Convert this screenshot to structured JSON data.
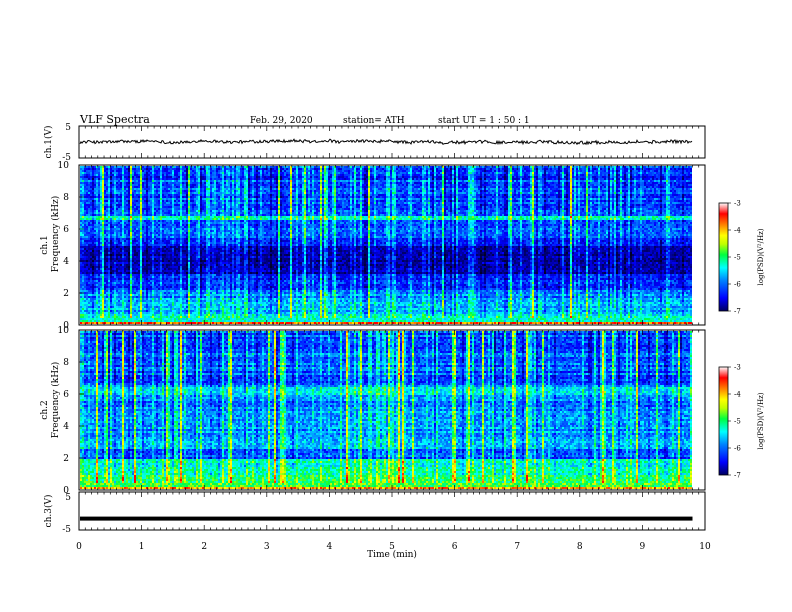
{
  "header": {
    "title": "VLF  Spectra",
    "date": "Feb. 29, 2020",
    "station": "station= ATH",
    "start_ut": "start  UT  =   1 : 50 : 1"
  },
  "colors": {
    "cmap": [
      "#000080",
      "#0000ff",
      "#0080ff",
      "#00ffff",
      "#00ff40",
      "#c0ff00",
      "#ffff00",
      "#ff8000",
      "#ff0000",
      "#ffffff"
    ]
  },
  "chart_data": [
    {
      "type": "line",
      "id": "ch1-voltage",
      "ylabel": "ch.1(V)",
      "ylim": [
        -5,
        5
      ],
      "yticks": [
        "5",
        "-5"
      ],
      "xlim": [
        0,
        10
      ],
      "baseline": 0.0
    },
    {
      "type": "heatmap",
      "id": "ch1-spectrogram",
      "ylabel_top": "ch.1",
      "ylabel": "Frequency  (kHz)",
      "ylim": [
        0,
        10
      ],
      "yticks": [
        "0",
        "2",
        "4",
        "6",
        "8",
        "10"
      ],
      "xlim": [
        0,
        10
      ],
      "data_end_min": 9.8,
      "colorbar": {
        "label": "log(PSD)(V²/Hz)",
        "range": [
          -7,
          -3
        ],
        "ticks": [
          "-3",
          "-4",
          "-5",
          "-6",
          "-7"
        ]
      }
    },
    {
      "type": "heatmap",
      "id": "ch2-spectrogram",
      "ylabel_top": "ch.2",
      "ylabel": "Frequency  (kHz)",
      "ylim": [
        0,
        10
      ],
      "yticks": [
        "0",
        "2",
        "4",
        "6",
        "8",
        "10"
      ],
      "xlim": [
        0,
        10
      ],
      "data_end_min": 9.8,
      "colorbar": {
        "label": "log(PSD)(V²/Hz)",
        "range": [
          -7,
          -3
        ],
        "ticks": [
          "-3",
          "-4",
          "-5",
          "-6",
          "-7"
        ]
      }
    },
    {
      "type": "line",
      "id": "ch3-voltage",
      "ylabel": "ch.3(V)",
      "ylim": [
        -5,
        5
      ],
      "yticks": [
        "5",
        "-5"
      ],
      "xlim": [
        0,
        10
      ],
      "baseline": -2.0
    }
  ],
  "xaxis": {
    "label": "Time  (min)",
    "ticks": [
      "0",
      "1",
      "2",
      "3",
      "4",
      "5",
      "6",
      "7",
      "8",
      "9",
      "10"
    ]
  }
}
